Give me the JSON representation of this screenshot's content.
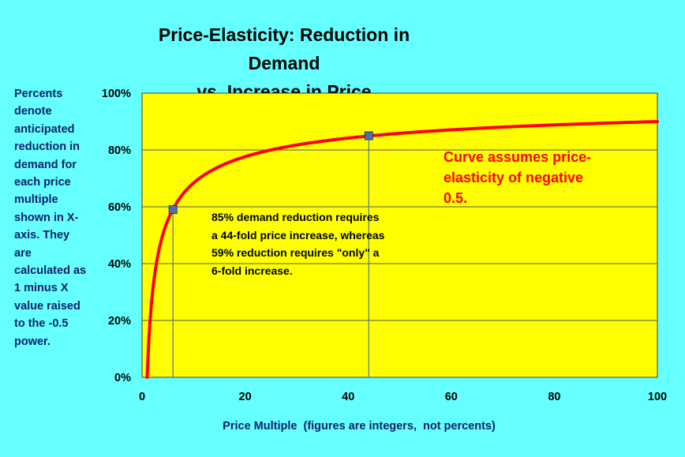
{
  "chart_data": {
    "type": "line",
    "title_lines": [
      "Price-Elasticity: Reduction in Demand",
      "vs. Increase in Price"
    ],
    "xlabel": "Price Multiple  (figures are integers,  not percents)",
    "ylabel": "",
    "xlim": [
      0,
      100
    ],
    "ylim": [
      0,
      1
    ],
    "x_ticks": [
      "0",
      "20",
      "40",
      "60",
      "80",
      "100"
    ],
    "y_ticks": [
      "0%",
      "20%",
      "40%",
      "60%",
      "80%",
      "100%"
    ],
    "grid": "horizontal",
    "formula": "y = 1 - x^(-0.5)",
    "series": [
      {
        "x": [
          1,
          1.5,
          2,
          2.5,
          3,
          4,
          5,
          6,
          7,
          8,
          10,
          12,
          15,
          20,
          25,
          30,
          35,
          40,
          44,
          50,
          60,
          70,
          80,
          90,
          100
        ],
        "y": [
          0,
          0.1835,
          0.2929,
          0.3675,
          0.4226,
          0.5,
          0.5528,
          0.5918,
          0.622,
          0.6464,
          0.6838,
          0.7113,
          0.7418,
          0.7764,
          0.8,
          0.8174,
          0.831,
          0.8419,
          0.8492,
          0.8586,
          0.8709,
          0.8805,
          0.8882,
          0.8946,
          0.9
        ]
      }
    ],
    "highlighted_points": [
      {
        "x": 6,
        "y": 0.59
      },
      {
        "x": 44,
        "y": 0.85
      }
    ],
    "annotations": {
      "side_note": "Percents denote anticipated reduction in demand for each price multiple shown in X-axis. They are calculated as 1 minus X value raised to the -0.5 power.",
      "callout": "85% demand reduction requires a 44-fold price increase, whereas 59% reduction requires \"only\" a 6-fold increase.",
      "assumption": "Curve assumes price-elasticity of negative 0.5."
    }
  },
  "colors": {
    "background": "#66ffff",
    "plot_area": "#ffff00",
    "curve": "#ff0000",
    "marker": "#4f6ea8",
    "note_text": "#0d1f6b",
    "assumption_text": "#ff0000"
  }
}
